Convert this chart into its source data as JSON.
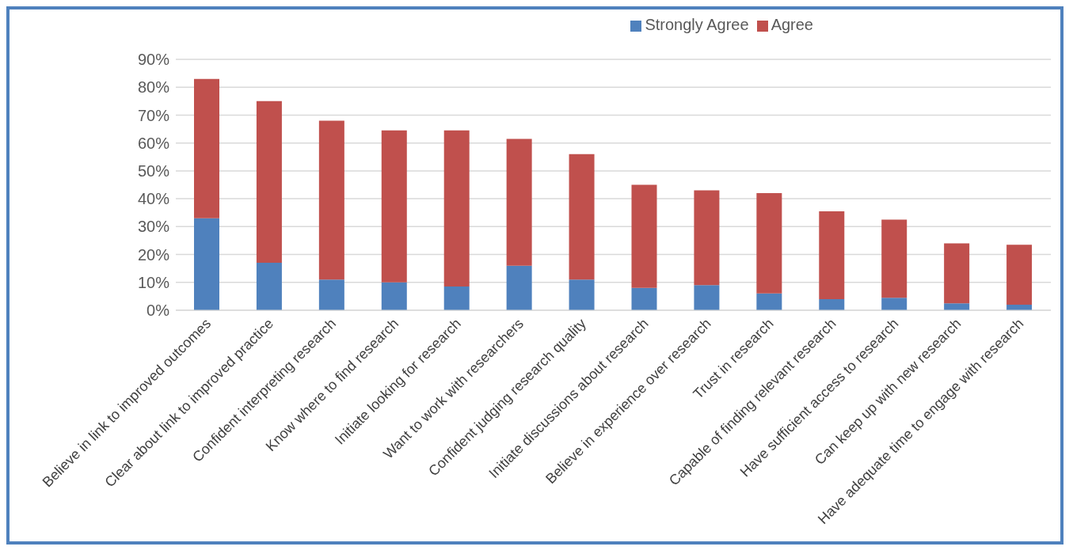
{
  "chart_data": {
    "type": "bar",
    "stacked": true,
    "categories": [
      "Believe in link to improved outcomes",
      "Clear about link to improved practice",
      "Confident interpreting research",
      "Know where to find research",
      "Initiate looking for research",
      "Want to work with researchers",
      "Confident judging research quality",
      "Initiate discussions about research",
      "Believe in experience over research",
      "Trust in research",
      "Capable of finding relevant research",
      "Have sufficient access to research",
      "Can keep up with new research",
      "Have adequate time to engage with research"
    ],
    "series": [
      {
        "name": "Strongly Agree",
        "color": "#4f81bd",
        "values": [
          33,
          17,
          11,
          10,
          8.5,
          16,
          11,
          8,
          9,
          6,
          4,
          4.5,
          2.5,
          2
        ]
      },
      {
        "name": "Agree",
        "color": "#c0504d",
        "values": [
          50,
          58,
          57,
          54.5,
          56,
          45.5,
          45,
          37,
          34,
          36,
          31.5,
          28,
          21.5,
          21.5
        ]
      }
    ],
    "ylim": [
      0,
      90
    ],
    "yticks": [
      {
        "value": 0,
        "label": "0%"
      },
      {
        "value": 10,
        "label": "10%"
      },
      {
        "value": 20,
        "label": "20%"
      },
      {
        "value": 30,
        "label": "30%"
      },
      {
        "value": 40,
        "label": "40%"
      },
      {
        "value": 50,
        "label": "50%"
      },
      {
        "value": 60,
        "label": "60%"
      },
      {
        "value": 70,
        "label": "70%"
      },
      {
        "value": 80,
        "label": "80%"
      },
      {
        "value": 90,
        "label": "90%"
      }
    ],
    "grid": "y",
    "legend": "top right"
  }
}
